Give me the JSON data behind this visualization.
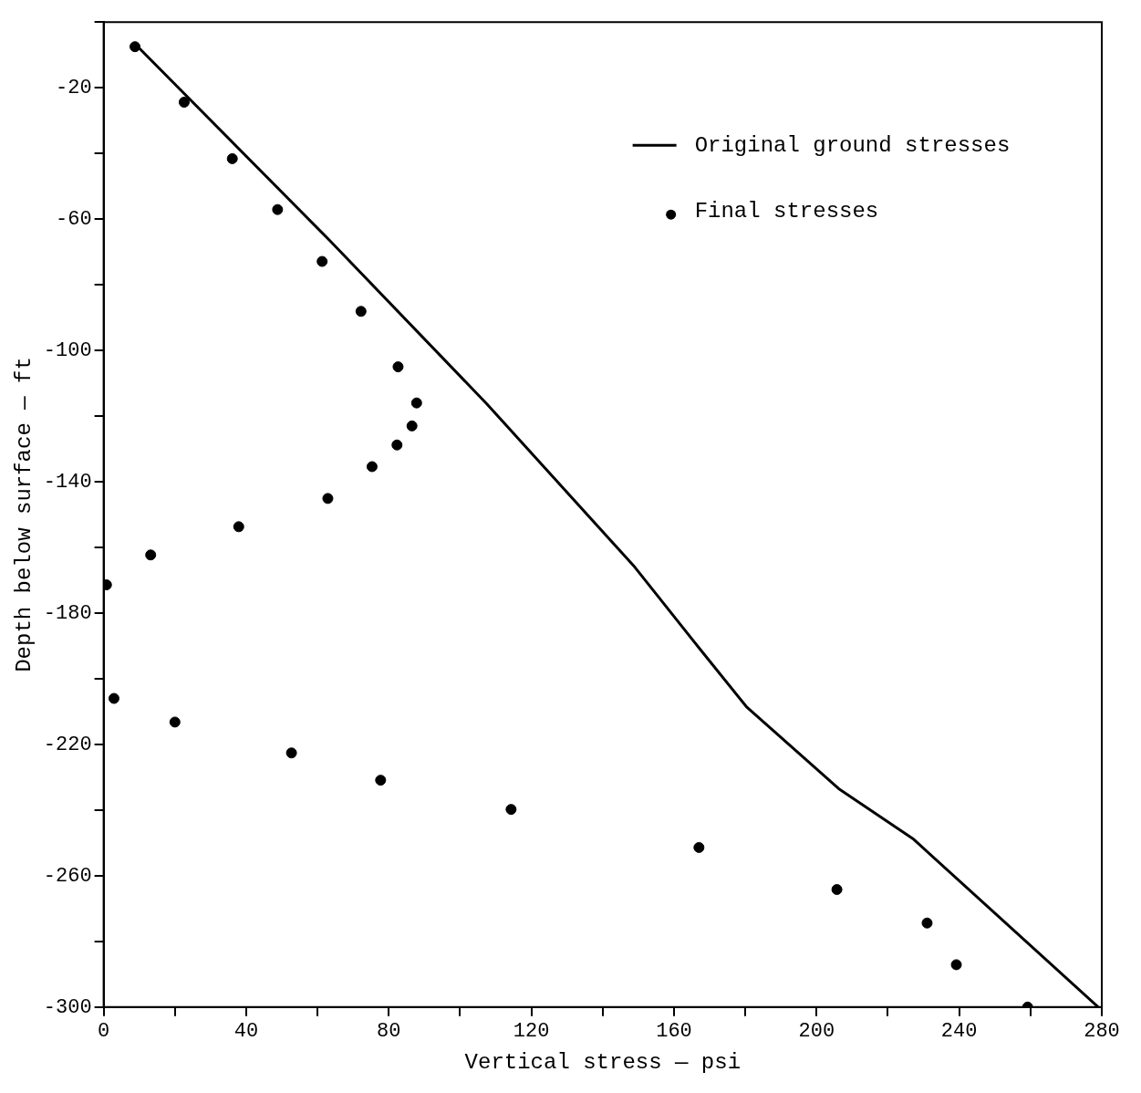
{
  "chart_data": {
    "type": "scatter",
    "xlabel": "Vertical stress — psi",
    "ylabel": "Depth below surface — ft",
    "xlim": [
      0,
      280
    ],
    "ylim": [
      -300,
      0
    ],
    "xticks": [
      0,
      {
        "value": 20,
        "label": null
      },
      40,
      {
        "value": 60,
        "label": null
      },
      80,
      {
        "value": 100,
        "label": null
      },
      120,
      {
        "value": 140,
        "label": null
      },
      160,
      {
        "value": 180,
        "label": null
      },
      200,
      {
        "value": 220,
        "label": null
      },
      240,
      {
        "value": 260,
        "label": null
      },
      280
    ],
    "yticks": [
      {
        "value": 0,
        "label": null
      },
      -20,
      {
        "value": -40,
        "label": null
      },
      -60,
      {
        "value": -80,
        "label": null
      },
      -100,
      {
        "value": -120,
        "label": null
      },
      -140,
      {
        "value": -160,
        "label": null
      },
      -180,
      {
        "value": -200,
        "label": null
      },
      -220,
      {
        "value": -240,
        "label": null
      },
      -260,
      {
        "value": -280,
        "label": null
      },
      -300
    ],
    "grid": false,
    "legend": "top right",
    "series": [
      {
        "name": "Original ground stresses",
        "type": "line",
        "color": "#000000",
        "marker": "none",
        "line_style": "solid",
        "x": [
          9.6,
          63.4,
          107.5,
          149,
          167.3,
          180.3,
          206.2,
          227,
          279
        ],
        "values": [
          -7.5,
          -66.5,
          -116.3,
          -166,
          -191,
          -208.5,
          -233.5,
          -248.7,
          -300
        ]
      },
      {
        "name": "Final stresses",
        "color": "#000000",
        "marker": "circle",
        "x": [
          8.8,
          22.6,
          36.1,
          48.8,
          61.3,
          72.2,
          82.6,
          87.8,
          86.5,
          82.3,
          75.3,
          62.9,
          37.9,
          13.2,
          0.8,
          2.9,
          20,
          52.7,
          77.7,
          114.3,
          167,
          205.7,
          231,
          239.2,
          259.2
        ],
        "values": [
          -7.5,
          -24.4,
          -41.6,
          -57.1,
          -72.9,
          -88.1,
          -105,
          -116,
          -123,
          -128.8,
          -135.4,
          -145.1,
          -153.7,
          -162.3,
          -171.4,
          -206,
          -213.2,
          -222.6,
          -230.9,
          -239.8,
          -251.4,
          -264.2,
          -274.4,
          -287.1,
          -300
        ]
      }
    ]
  }
}
